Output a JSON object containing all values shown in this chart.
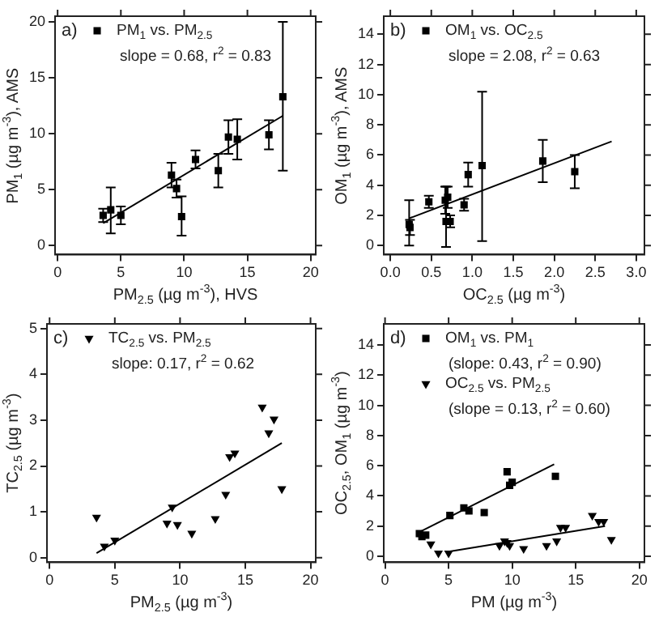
{
  "chart_data": [
    {
      "type": "scatter",
      "xlabel": "PM$_{2.5}$ (µg m$^{-3}$), HVS",
      "ylabel": "PM$_{1}$ (µg m$^{-3}$), AMS",
      "annotations": [
        "a)",
        "slope = 0.68, r$^{2}$ = 0.83"
      ],
      "xlim": [
        -0.2,
        20.4
      ],
      "ylim": [
        -0.8,
        20.5
      ],
      "xticks": [
        0,
        5,
        10,
        15,
        20
      ],
      "yticks": [
        0,
        5,
        10,
        15,
        20
      ],
      "legend": "top left",
      "series": [
        {
          "name": "PM$_{1}$ vs. PM$_{2.5}$",
          "color": "#000000",
          "marker": "square",
          "x": [
            3.6,
            4.2,
            5.0,
            9.0,
            9.4,
            9.8,
            10.9,
            12.7,
            13.5,
            14.2,
            16.7,
            17.8
          ],
          "values": [
            2.7,
            3.2,
            2.7,
            6.3,
            5.1,
            2.6,
            7.7,
            6.7,
            9.7,
            9.5,
            9.9,
            13.3
          ],
          "errors": [
            0.6,
            [
              1.1,
              5.2
            ],
            0.8,
            1.1,
            0.8,
            [
              0.9,
              4.4
            ],
            0.8,
            1.5,
            1.5,
            1.8,
            1.3,
            [
              6.7,
              20
            ]
          ]
        },
        {
          "type": "line",
          "color": "#000000",
          "marker": "none",
          "x": [
            3.6,
            17.8
          ],
          "values": [
            2.0,
            11.6
          ]
        }
      ]
    },
    {
      "type": "scatter",
      "xlabel": "OC$_{2.5}$ (µg m$^{-3}$)",
      "ylabel": "OM$_{1}$ (µg m$^{-3}$), AMS",
      "annotations": [
        "b)",
        "slope = 2.08, r$^{2}$ = 0.63"
      ],
      "xlim": [
        -0.08,
        3.1
      ],
      "ylim": [
        -0.6,
        15.2
      ],
      "xticks": [
        {
          "value": 0,
          "label": "0.0"
        },
        0.5,
        {
          "value": 1,
          "label": "1.0"
        },
        1.5,
        {
          "value": 2,
          "label": "2.0"
        },
        2.5,
        {
          "value": 3,
          "label": "3.0"
        }
      ],
      "yticks": [
        0,
        2,
        4,
        6,
        8,
        10,
        12,
        14
      ],
      "legend": "top left",
      "series": [
        {
          "name": "OM$_{1}$ vs. OC$_{2.5}$",
          "color": "#000000",
          "marker": "square",
          "x": [
            0.23,
            0.24,
            0.47,
            0.67,
            0.68,
            0.7,
            0.73,
            0.9,
            0.95,
            1.12,
            1.86,
            2.25
          ],
          "values": [
            1.4,
            1.2,
            2.9,
            3.0,
            1.6,
            3.2,
            1.6,
            2.7,
            4.7,
            5.3,
            5.6,
            4.9
          ],
          "errors": [
            [
              0,
              3.0
            ],
            0.5,
            0.4,
            0.9,
            [
              -0.1,
              3.9
            ],
            0.7,
            0.4,
            0.4,
            0.8,
            [
              0.3,
              10.2
            ],
            1.4,
            [
              3.8,
              6.0
            ]
          ]
        },
        {
          "type": "line",
          "color": "#000000",
          "marker": "none",
          "x": [
            0.23,
            2.7
          ],
          "values": [
            1.8,
            6.9
          ]
        }
      ]
    },
    {
      "type": "scatter",
      "xlabel": "PM$_{2.5}$ (µg m$^{-3}$)",
      "ylabel": "TC$_{2.5}$ (µg m$^{-3}$)",
      "annotations": [
        "c)",
        "slope: 0.17, r$^{2}$ = 0.62"
      ],
      "xlim": [
        -0.2,
        20.4
      ],
      "ylim": [
        -0.1,
        5.1
      ],
      "xticks": [
        0,
        5,
        10,
        15,
        20
      ],
      "yticks": [
        0,
        1,
        2,
        3,
        4,
        5
      ],
      "legend": "top left",
      "series": [
        {
          "name": "TC$_{2.5}$ vs. PM$_{2.5}$",
          "color": "#000000",
          "marker": "triangle",
          "x": [
            3.6,
            4.2,
            5.0,
            9.0,
            9.4,
            9.8,
            10.9,
            12.7,
            13.5,
            13.8,
            14.2,
            16.3,
            16.8,
            17.2,
            17.8
          ],
          "values": [
            0.88,
            0.25,
            0.38,
            0.75,
            1.1,
            0.72,
            0.53,
            0.85,
            1.38,
            2.2,
            2.28,
            3.28,
            2.72,
            3.02,
            1.5
          ]
        },
        {
          "type": "line",
          "color": "#000000",
          "marker": "none",
          "x": [
            3.6,
            17.8
          ],
          "values": [
            0.1,
            2.5
          ]
        }
      ]
    },
    {
      "type": "scatter",
      "xlabel": "PM (µg m$^{-3}$)",
      "ylabel": "OC$_{2.5}$, OM$_{1}$ (µg m$^{-3}$)",
      "annotations": [
        "d)",
        "(slope: 0.43, r$^{2}$ = 0.90)",
        "(slope = 0.13, r$^{2}$ = 0.60)"
      ],
      "xlim": [
        -0.1,
        20.4
      ],
      "ylim": [
        -0.4,
        15.4
      ],
      "xticks": [
        0,
        5,
        10,
        15,
        20
      ],
      "yticks": [
        0,
        2,
        4,
        6,
        8,
        10,
        12,
        14
      ],
      "legend": "top left",
      "series": [
        {
          "name": "OM$_{1}$ vs. PM$_{1}$",
          "color": "#000000",
          "marker": "square",
          "x": [
            2.7,
            2.9,
            3.2,
            5.1,
            6.2,
            6.6,
            7.8,
            9.6,
            9.8,
            10.0,
            13.4
          ],
          "values": [
            1.5,
            1.3,
            1.4,
            2.7,
            3.2,
            3.0,
            2.9,
            5.6,
            4.7,
            4.9,
            5.3
          ]
        },
        {
          "name": "OC$_{2.5}$ vs. PM$_{2.5}$",
          "color": "#000000",
          "marker": "triangle",
          "x": [
            3.6,
            4.2,
            5.0,
            9.0,
            9.4,
            9.6,
            9.8,
            10.9,
            12.7,
            13.5,
            13.8,
            14.2,
            16.3,
            16.8,
            17.2,
            17.8
          ],
          "values": [
            0.8,
            0.2,
            0.2,
            0.7,
            1.0,
            0.9,
            0.7,
            0.5,
            0.7,
            1.0,
            1.9,
            1.9,
            2.7,
            2.3,
            2.3,
            1.1
          ]
        },
        {
          "type": "line",
          "color": "#000000",
          "marker": "none",
          "x": [
            2.7,
            13.3
          ],
          "values": [
            1.6,
            6.1
          ]
        },
        {
          "type": "line",
          "color": "#000000",
          "marker": "none",
          "x": [
            5.0,
            17.3
          ],
          "values": [
            0.3,
            2.0
          ]
        }
      ]
    }
  ]
}
